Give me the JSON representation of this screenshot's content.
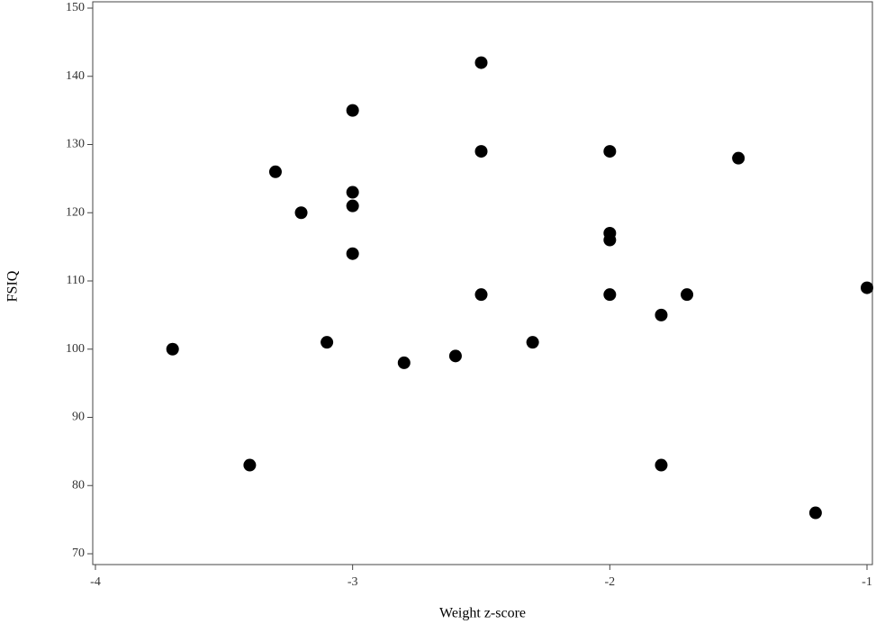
{
  "chart_data": {
    "type": "scatter",
    "x_label": "Weight z-score",
    "y_label": "FSIQ",
    "x": [
      -3.7,
      -3.4,
      -3.3,
      -3.2,
      -3.1,
      -3.0,
      -3.0,
      -3.0,
      -3.0,
      -2.8,
      -2.6,
      -2.5,
      -2.5,
      -2.5,
      -2.3,
      -2.0,
      -2.0,
      -2.0,
      -2.0,
      -1.8,
      -1.8,
      -1.7,
      -1.5,
      -1.2,
      -1.0
    ],
    "values": [
      100,
      83,
      126,
      120,
      101,
      135,
      123,
      121,
      114,
      98,
      99,
      142,
      129,
      108,
      101,
      129,
      117,
      116,
      108,
      105,
      83,
      108,
      128,
      76,
      109
    ],
    "color": "#000000",
    "xlim": [
      -4,
      -1
    ],
    "xticks": [
      -4,
      -3,
      -2,
      -1
    ],
    "ylim": [
      70,
      150
    ],
    "yticks": [
      70,
      80,
      90,
      100,
      110,
      120,
      130,
      140,
      150
    ],
    "grid": false
  }
}
